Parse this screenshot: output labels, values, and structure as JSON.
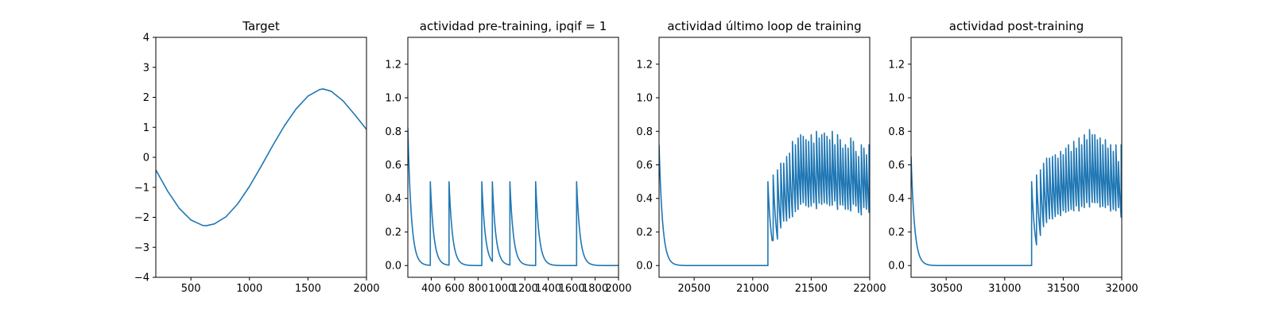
{
  "chart_data": [
    {
      "type": "line",
      "title": "Target",
      "xlabel": "",
      "ylabel": "",
      "xlim": [
        200,
        2000
      ],
      "ylim": [
        -4,
        4
      ],
      "xticks": [
        500,
        1000,
        1500,
        2000
      ],
      "yticks": [
        -4,
        -3,
        -2,
        -1,
        0,
        1,
        2,
        3,
        4
      ],
      "grid": false,
      "color": "#1f77b4",
      "series": [
        {
          "x": [
            200,
            300,
            400,
            500,
            600,
            630,
            700,
            800,
            900,
            1000,
            1100,
            1200,
            1300,
            1400,
            1500,
            1600,
            1630,
            1700,
            1800,
            1900,
            2000
          ],
          "values": [
            -0.42,
            -1.12,
            -1.7,
            -2.09,
            -2.27,
            -2.28,
            -2.22,
            -1.98,
            -1.55,
            -0.97,
            -0.3,
            0.4,
            1.06,
            1.62,
            2.04,
            2.26,
            2.28,
            2.2,
            1.88,
            1.42,
            0.93
          ]
        }
      ]
    },
    {
      "type": "line",
      "title": "actividad pre-training, ipqif = 1",
      "xlabel": "",
      "ylabel": "",
      "xlim": [
        200,
        2000
      ],
      "ylim": [
        -0.07,
        1.36
      ],
      "xticks": [
        400,
        600,
        800,
        1000,
        1200,
        1400,
        1600,
        1800,
        2000
      ],
      "yticks": [
        0.0,
        0.2,
        0.4,
        0.6,
        0.8,
        1.0,
        1.2
      ],
      "grid": false,
      "color": "#1f77b4",
      "initial_value": 0.82,
      "spike_x": [
        392,
        552,
        832,
        922,
        1072,
        1292,
        1642
      ],
      "spike_y": [
        0.5,
        0.5,
        0.5,
        0.5,
        0.5,
        0.5,
        0.5
      ],
      "decay": 30
    },
    {
      "type": "line",
      "title": "actividad último loop de training",
      "xlabel": "",
      "ylabel": "",
      "xlim": [
        20200,
        22000
      ],
      "ylim": [
        -0.07,
        1.36
      ],
      "xticks": [
        20500,
        21000,
        21500,
        22000
      ],
      "yticks": [
        0.0,
        0.2,
        0.4,
        0.6,
        0.8,
        1.0,
        1.2
      ],
      "grid": false,
      "color": "#1f77b4",
      "initial_value": 0.72,
      "spike_x": [
        21130,
        21175,
        21212,
        21240,
        21265,
        21290,
        21315,
        21340,
        21365,
        21388,
        21410,
        21432,
        21455,
        21478,
        21500,
        21522,
        21545,
        21568,
        21590,
        21612,
        21635,
        21658,
        21680,
        21702,
        21725,
        21748,
        21770,
        21792,
        21815,
        21838,
        21860,
        21882,
        21905,
        21928,
        21950,
        21972,
        21994
      ],
      "spike_y": [
        0.5,
        0.54,
        0.57,
        0.61,
        0.61,
        0.65,
        0.67,
        0.74,
        0.72,
        0.76,
        0.78,
        0.77,
        0.75,
        0.74,
        0.78,
        0.73,
        0.8,
        0.76,
        0.78,
        0.79,
        0.77,
        0.75,
        0.8,
        0.72,
        0.78,
        0.75,
        0.7,
        0.72,
        0.7,
        0.76,
        0.74,
        0.68,
        0.65,
        0.72,
        0.7,
        0.66,
        0.72
      ],
      "trough_y": [
        0.15,
        0.1,
        0.12,
        0.13,
        0.15,
        0.18,
        0.2,
        0.2,
        0.22,
        0.22,
        0.24,
        0.22,
        0.22,
        0.2,
        0.22,
        0.25,
        0.22,
        0.24,
        0.22,
        0.2,
        0.22,
        0.26,
        0.22,
        0.24,
        0.22,
        0.2,
        0.22,
        0.24,
        0.22,
        0.2,
        0.22,
        0.25,
        0.22,
        0.24,
        0.22,
        0.28
      ],
      "decay": 30
    },
    {
      "type": "line",
      "title": "actividad post-training",
      "xlabel": "",
      "ylabel": "",
      "xlim": [
        30200,
        32000
      ],
      "ylim": [
        -0.07,
        1.36
      ],
      "xticks": [
        30500,
        31000,
        31500,
        32000
      ],
      "yticks": [
        0.0,
        0.2,
        0.4,
        0.6,
        0.8,
        1.0,
        1.2
      ],
      "grid": false,
      "color": "#1f77b4",
      "initial_value": 0.65,
      "spike_x": [
        31230,
        31272,
        31305,
        31332,
        31358,
        31383,
        31408,
        31432,
        31455,
        31478,
        31500,
        31522,
        31545,
        31568,
        31590,
        31612,
        31635,
        31658,
        31680,
        31702,
        31725,
        31748,
        31770,
        31792,
        31815,
        31838,
        31860,
        31882,
        31905,
        31928,
        31950,
        31972,
        31995
      ],
      "spike_y": [
        0.5,
        0.54,
        0.57,
        0.61,
        0.64,
        0.64,
        0.65,
        0.66,
        0.64,
        0.68,
        0.66,
        0.7,
        0.72,
        0.68,
        0.74,
        0.7,
        0.76,
        0.72,
        0.78,
        0.75,
        0.81,
        0.78,
        0.78,
        0.75,
        0.76,
        0.72,
        0.75,
        0.7,
        0.72,
        0.68,
        0.72,
        0.62,
        0.72
      ],
      "trough_y": [
        0.12,
        0.1,
        0.14,
        0.16,
        0.18,
        0.2,
        0.2,
        0.22,
        0.2,
        0.22,
        0.24,
        0.22,
        0.22,
        0.24,
        0.22,
        0.25,
        0.22,
        0.24,
        0.22,
        0.2,
        0.24,
        0.22,
        0.25,
        0.22,
        0.24,
        0.22,
        0.22,
        0.25,
        0.22,
        0.24,
        0.22,
        0.25
      ],
      "decay": 30
    }
  ]
}
